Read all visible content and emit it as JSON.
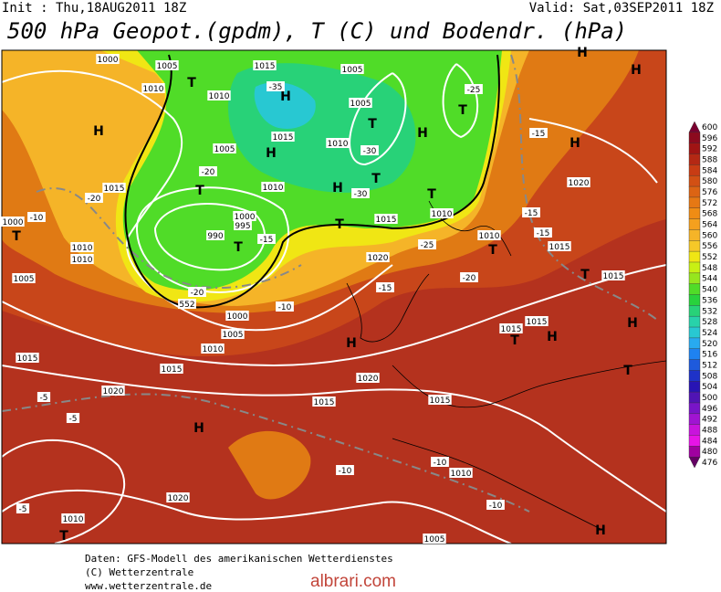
{
  "header": {
    "init": "Init : Thu,18AUG2011 18Z",
    "valid": "Valid: Sat,03SEP2011 18Z",
    "title": "500 hPa Geopot.(gpdm), T (C) und Bodendr. (hPa)"
  },
  "colorbar": {
    "values": [
      600,
      596,
      592,
      588,
      584,
      580,
      576,
      572,
      568,
      564,
      560,
      556,
      552,
      548,
      544,
      540,
      536,
      532,
      528,
      524,
      520,
      516,
      512,
      508,
      504,
      500,
      496,
      492,
      488,
      484,
      480,
      476
    ],
    "colors": [
      "#7a0030",
      "#8c0a1e",
      "#a01414",
      "#b42814",
      "#c83c14",
      "#d25014",
      "#dc6414",
      "#e67814",
      "#f08c14",
      "#f5a01e",
      "#f5b428",
      "#f5c828",
      "#f0e614",
      "#c8f014",
      "#96e61e",
      "#50dc28",
      "#28d23c",
      "#28d278",
      "#28d2aa",
      "#28c8d2",
      "#28aaf0",
      "#1e82f0",
      "#1e5adc",
      "#1e32c8",
      "#2814b4",
      "#5014b4",
      "#7814c8",
      "#a014d2",
      "#c814dc",
      "#e614e6",
      "#a000a0",
      "#640064"
    ]
  },
  "map": {
    "labels": [
      "1000",
      "1005",
      "1010",
      "H",
      "T",
      "1015",
      "1010",
      "H",
      "-35",
      "1005",
      "1005",
      "T",
      "H",
      "-25",
      "T",
      "1015",
      "H",
      "1010",
      "-30",
      "1005",
      "-20",
      "T",
      "1010",
      "H",
      "T",
      "-30",
      "T",
      "1010",
      "1015",
      "T",
      "-15",
      "H",
      "1020",
      "H",
      "H",
      "1015",
      "-20",
      "-10",
      "1000",
      "T",
      "1010",
      "1010",
      "1005",
      "1000",
      "995",
      "990",
      "T",
      "-15",
      "1020",
      "-25",
      "1010",
      "T",
      "-15",
      "-15",
      "1015",
      "-20",
      "-15",
      "-10",
      "-20",
      "552",
      "1000",
      "1005",
      "1010",
      "H",
      "1015",
      "1015",
      "1020",
      "-5",
      "1020",
      "-5",
      "H",
      "1015",
      "1015",
      "1015",
      "1015",
      "1015",
      "T",
      "H",
      "T",
      "H",
      "T",
      "-10",
      "-10",
      "1010",
      "-10",
      "1020",
      "-5",
      "1010",
      "T",
      "1005",
      "H"
    ]
  },
  "footer": {
    "lines": [
      "Daten: GFS-Modell des amerikanischen Wetterdienstes",
      "(C) Wetterzentrale",
      "www.wetterzentrale.de"
    ],
    "watermark": "albrari.com"
  }
}
